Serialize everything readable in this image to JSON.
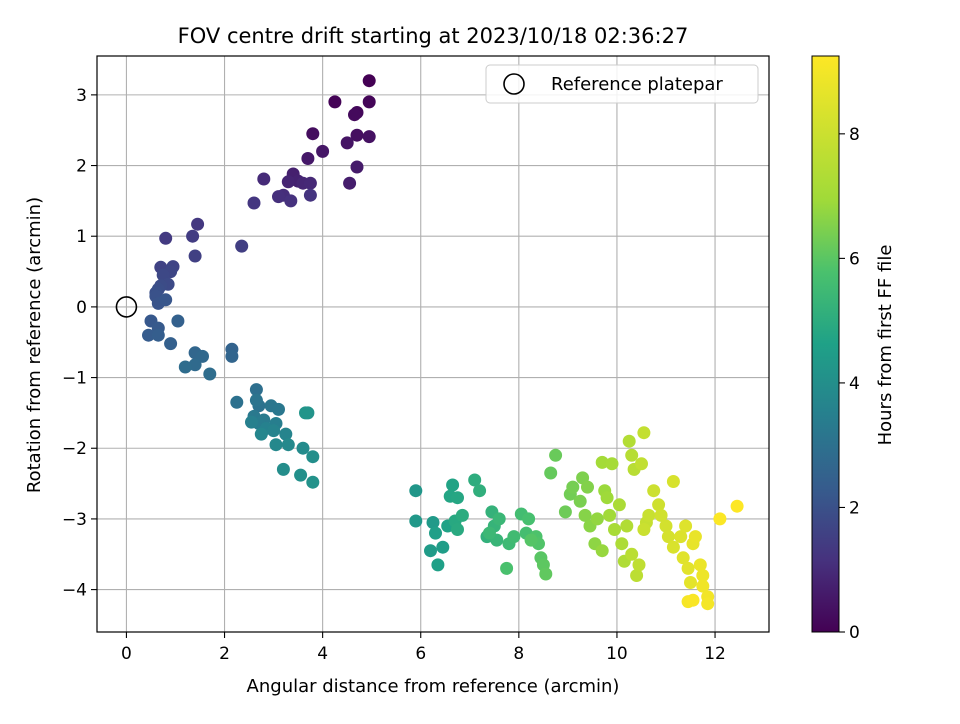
{
  "chart_data": {
    "type": "scatter",
    "title": "FOV centre drift starting at 2023/10/18 02:36:27",
    "xlabel": "Angular distance from reference (arcmin)",
    "ylabel": "Rotation from reference (arcmin)",
    "xlim": [
      -0.6,
      13.1
    ],
    "ylim": [
      -4.6,
      3.55
    ],
    "xticks": [
      0,
      2,
      4,
      6,
      8,
      10,
      12
    ],
    "yticks": [
      -4,
      -3,
      -2,
      -1,
      0,
      1,
      2,
      3
    ],
    "grid": true,
    "legend": {
      "placement": "top-right",
      "entries": [
        "Reference platepar"
      ]
    },
    "reference_point": {
      "name": "Reference platepar",
      "x": 0,
      "y": 0
    },
    "colorbar": {
      "label": "Hours from first FF file",
      "colormap": "viridis",
      "range": [
        0,
        9.25
      ],
      "ticks": [
        0,
        2,
        4,
        6,
        8
      ]
    },
    "series": [
      {
        "name": "",
        "points": [
          [
            4.95,
            3.2
          ],
          [
            4.25,
            2.9
          ],
          [
            4.95,
            2.9
          ],
          [
            4.7,
            2.75
          ],
          [
            4.65,
            2.72
          ],
          [
            3.8,
            2.45
          ],
          [
            4.7,
            2.43
          ],
          [
            4.95,
            2.41
          ],
          [
            4.5,
            2.32
          ],
          [
            4.0,
            2.2
          ],
          [
            3.7,
            2.1
          ],
          [
            4.7,
            1.98
          ],
          [
            4.55,
            1.75
          ],
          [
            3.4,
            1.88
          ],
          [
            3.5,
            1.78
          ],
          [
            3.3,
            1.77
          ],
          [
            3.6,
            1.75
          ],
          [
            3.75,
            1.75
          ],
          [
            2.8,
            1.81
          ],
          [
            3.2,
            1.58
          ],
          [
            3.1,
            1.56
          ],
          [
            3.35,
            1.5
          ],
          [
            3.75,
            1.58
          ],
          [
            2.6,
            1.47
          ],
          [
            1.45,
            1.17
          ],
          [
            0.8,
            0.97
          ],
          [
            1.35,
            1.0
          ],
          [
            2.35,
            0.86
          ],
          [
            1.4,
            0.72
          ],
          [
            0.7,
            0.56
          ],
          [
            0.95,
            0.57
          ],
          [
            0.9,
            0.5
          ],
          [
            0.75,
            0.45
          ],
          [
            0.85,
            0.32
          ],
          [
            0.7,
            0.3
          ],
          [
            0.65,
            0.25
          ],
          [
            0.6,
            0.2
          ],
          [
            0.6,
            0.15
          ],
          [
            0.65,
            0.05
          ],
          [
            0.8,
            0.1
          ],
          [
            0.5,
            -0.2
          ],
          [
            0.65,
            -0.3
          ],
          [
            0.45,
            -0.4
          ],
          [
            0.65,
            -0.4
          ],
          [
            0.9,
            -0.52
          ],
          [
            1.05,
            -0.2
          ],
          [
            2.15,
            -0.6
          ],
          [
            2.15,
            -0.7
          ],
          [
            1.4,
            -0.65
          ],
          [
            1.55,
            -0.7
          ],
          [
            1.4,
            -0.82
          ],
          [
            1.2,
            -0.85
          ],
          [
            1.7,
            -0.95
          ],
          [
            2.65,
            -1.17
          ],
          [
            2.25,
            -1.35
          ],
          [
            2.7,
            -1.4
          ],
          [
            2.65,
            -1.32
          ],
          [
            2.95,
            -1.4
          ],
          [
            3.1,
            -1.45
          ],
          [
            2.6,
            -1.55
          ],
          [
            2.8,
            -1.6
          ],
          [
            2.7,
            -1.65
          ],
          [
            3.05,
            -1.65
          ],
          [
            2.55,
            -1.63
          ],
          [
            2.85,
            -1.72
          ],
          [
            3.0,
            -1.75
          ],
          [
            3.25,
            -1.8
          ],
          [
            2.75,
            -1.8
          ],
          [
            3.05,
            -1.95
          ],
          [
            3.3,
            -1.95
          ],
          [
            3.6,
            -2.0
          ],
          [
            3.2,
            -2.3
          ],
          [
            3.8,
            -2.12
          ],
          [
            3.55,
            -2.38
          ],
          [
            3.8,
            -2.48
          ],
          [
            3.7,
            -1.5
          ],
          [
            3.65,
            -1.5
          ],
          [
            5.9,
            -2.6
          ],
          [
            5.9,
            -3.03
          ],
          [
            6.25,
            -3.05
          ],
          [
            6.2,
            -3.45
          ],
          [
            6.45,
            -3.4
          ],
          [
            6.3,
            -3.2
          ],
          [
            6.35,
            -3.65
          ],
          [
            6.55,
            -3.1
          ],
          [
            6.65,
            -2.52
          ],
          [
            6.6,
            -2.68
          ],
          [
            6.75,
            -2.7
          ],
          [
            6.7,
            -3.03
          ],
          [
            6.75,
            -3.15
          ],
          [
            6.85,
            -2.95
          ],
          [
            7.1,
            -2.45
          ],
          [
            7.2,
            -2.6
          ],
          [
            7.35,
            -3.25
          ],
          [
            7.45,
            -2.9
          ],
          [
            7.5,
            -3.1
          ],
          [
            7.55,
            -3.3
          ],
          [
            7.6,
            -3.0
          ],
          [
            7.4,
            -3.2
          ],
          [
            7.8,
            -3.35
          ],
          [
            7.9,
            -3.25
          ],
          [
            8.05,
            -2.93
          ],
          [
            8.15,
            -3.2
          ],
          [
            8.2,
            -3.0
          ],
          [
            7.75,
            -3.7
          ],
          [
            8.35,
            -3.25
          ],
          [
            8.4,
            -3.35
          ],
          [
            8.25,
            -3.3
          ],
          [
            8.45,
            -3.55
          ],
          [
            8.5,
            -3.65
          ],
          [
            8.55,
            -3.78
          ],
          [
            8.65,
            -2.35
          ],
          [
            8.75,
            -2.1
          ],
          [
            8.95,
            -2.9
          ],
          [
            9.05,
            -2.65
          ],
          [
            9.1,
            -2.55
          ],
          [
            9.25,
            -2.75
          ],
          [
            9.3,
            -2.42
          ],
          [
            9.4,
            -2.55
          ],
          [
            9.35,
            -2.95
          ],
          [
            9.45,
            -3.1
          ],
          [
            9.55,
            -3.35
          ],
          [
            9.6,
            -3.0
          ],
          [
            9.7,
            -3.45
          ],
          [
            9.75,
            -2.6
          ],
          [
            9.8,
            -2.7
          ],
          [
            9.85,
            -2.95
          ],
          [
            9.7,
            -2.2
          ],
          [
            9.9,
            -2.22
          ],
          [
            9.95,
            -3.15
          ],
          [
            10.05,
            -2.8
          ],
          [
            10.1,
            -3.35
          ],
          [
            10.15,
            -3.6
          ],
          [
            10.2,
            -3.1
          ],
          [
            10.25,
            -1.9
          ],
          [
            10.3,
            -2.1
          ],
          [
            10.35,
            -2.3
          ],
          [
            10.3,
            -3.5
          ],
          [
            10.4,
            -3.8
          ],
          [
            10.45,
            -3.65
          ],
          [
            10.5,
            -2.22
          ],
          [
            10.55,
            -1.78
          ],
          [
            10.6,
            -3.05
          ],
          [
            10.65,
            -2.95
          ],
          [
            10.55,
            -3.15
          ],
          [
            10.75,
            -2.6
          ],
          [
            10.85,
            -2.8
          ],
          [
            10.9,
            -2.95
          ],
          [
            11.0,
            -3.1
          ],
          [
            11.05,
            -3.25
          ],
          [
            11.15,
            -2.47
          ],
          [
            11.15,
            -3.4
          ],
          [
            11.3,
            -3.25
          ],
          [
            11.4,
            -3.1
          ],
          [
            11.35,
            -3.55
          ],
          [
            11.45,
            -3.7
          ],
          [
            11.5,
            -3.9
          ],
          [
            11.55,
            -3.35
          ],
          [
            11.6,
            -3.25
          ],
          [
            11.7,
            -3.65
          ],
          [
            11.75,
            -3.8
          ],
          [
            11.75,
            -3.95
          ],
          [
            11.85,
            -4.1
          ],
          [
            11.85,
            -4.2
          ],
          [
            11.45,
            -4.17
          ],
          [
            11.55,
            -4.15
          ],
          [
            12.1,
            -3.0
          ],
          [
            12.45,
            -2.82
          ]
        ]
      }
    ]
  }
}
